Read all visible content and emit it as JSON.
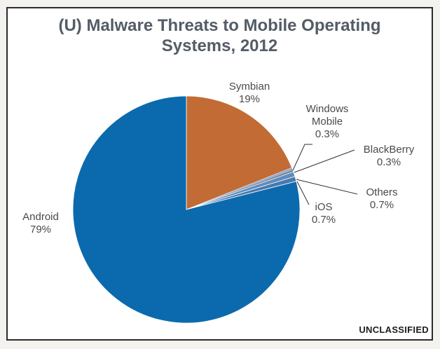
{
  "chart_data": {
    "type": "pie",
    "title": "(U)  Malware Threats to Mobile Operating Systems, 2012",
    "title_lines": [
      "(U)  Malware Threats to Mobile Operating",
      "Systems, 2012"
    ],
    "slices": [
      {
        "name": "Symbian",
        "value": 19,
        "value_label": "19%",
        "color": "#c26b35",
        "label_lines": [
          "Symbian",
          "19%"
        ]
      },
      {
        "name": "Windows Mobile",
        "value": 0.3,
        "value_label": "0.3%",
        "color": "#8ca7c9",
        "label_lines": [
          "Windows",
          "Mobile",
          "0.3%"
        ]
      },
      {
        "name": "BlackBerry",
        "value": 0.3,
        "value_label": "0.3%",
        "color": "#6f7f93",
        "label_lines": [
          "BlackBerry",
          "0.3%"
        ]
      },
      {
        "name": "Others",
        "value": 0.7,
        "value_label": "0.7%",
        "color": "#5d8cbf",
        "label_lines": [
          "Others",
          "0.7%"
        ]
      },
      {
        "name": "iOS",
        "value": 0.7,
        "value_label": "0.7%",
        "color": "#4a78ad",
        "label_lines": [
          "iOS",
          "0.7%"
        ]
      },
      {
        "name": "Android",
        "value": 79,
        "value_label": "79%",
        "color": "#0b6aad",
        "label_lines": [
          "Android",
          "79%"
        ]
      }
    ]
  },
  "classification_marking": "UNCLASSIFIED"
}
